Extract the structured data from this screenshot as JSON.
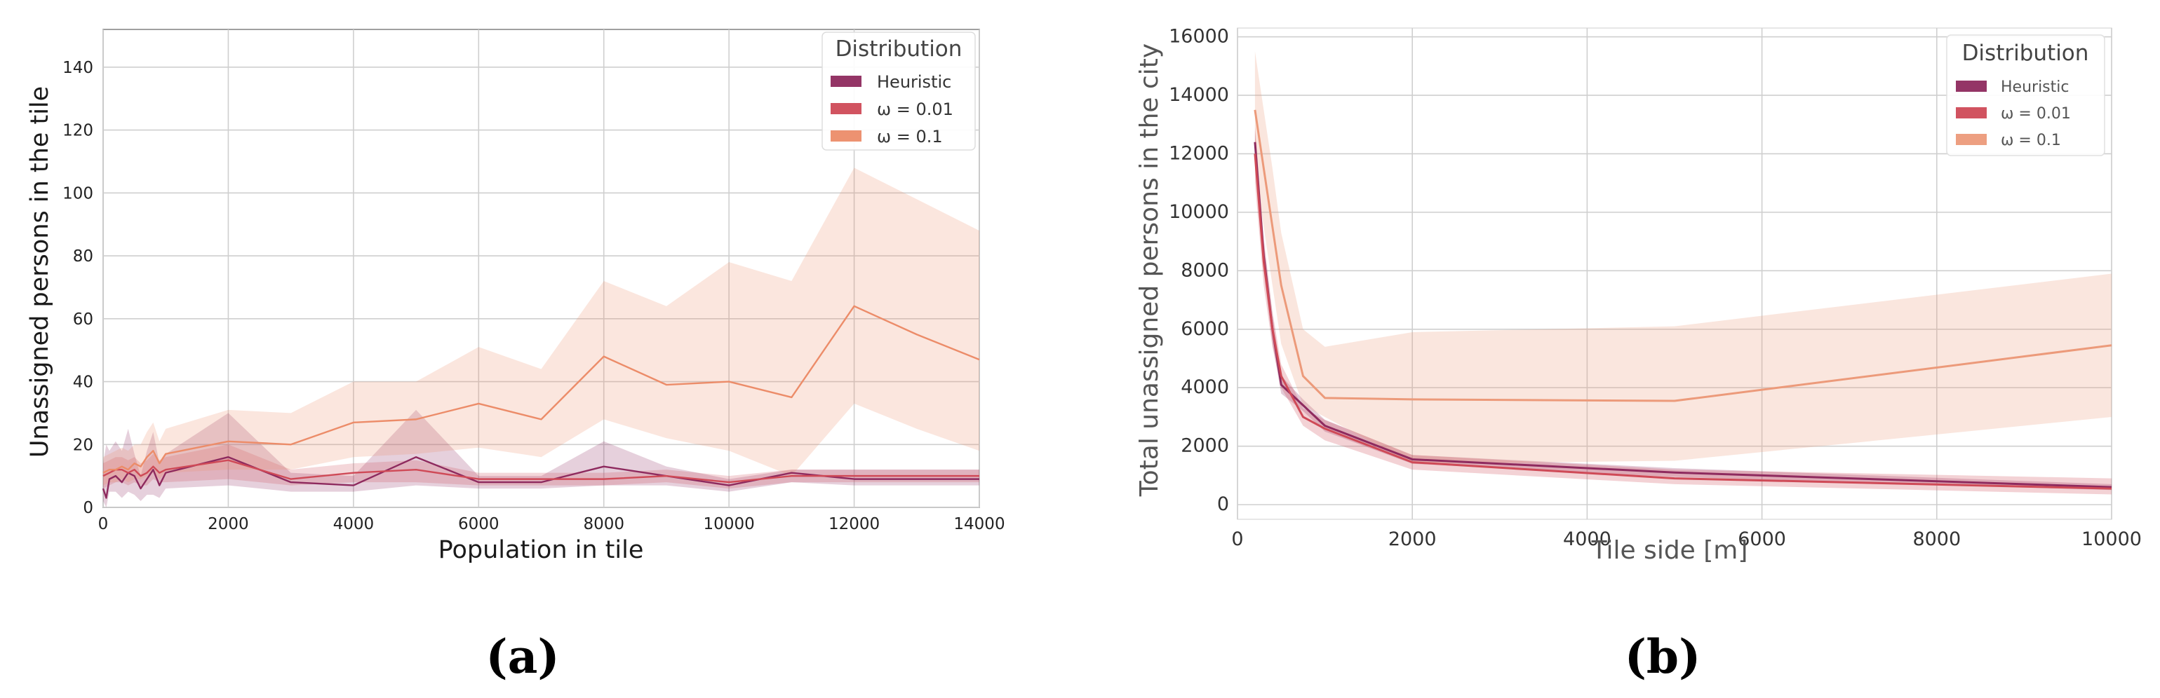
{
  "chart_data": [
    {
      "type": "line",
      "panel_label": "(a)",
      "title": "",
      "xlabel": "Population in tile",
      "ylabel": "Unassigned persons in the tile",
      "xlim": [
        0,
        14000
      ],
      "ylim": [
        0,
        152
      ],
      "xticks": [
        0,
        2000,
        4000,
        6000,
        8000,
        10000,
        12000,
        14000
      ],
      "yticks": [
        0,
        20,
        40,
        60,
        80,
        100,
        120,
        140
      ],
      "grid": true,
      "legend": {
        "title": "Distribution",
        "placement": "top-right"
      },
      "series": [
        {
          "name": "Heuristic",
          "color": "#8e2a5e",
          "x": [
            0,
            50,
            100,
            200,
            300,
            400,
            500,
            600,
            700,
            800,
            900,
            1000,
            2000,
            3000,
            4000,
            5000,
            6000,
            7000,
            8000,
            9000,
            10000,
            11000,
            12000,
            13000,
            14000
          ],
          "y": [
            6,
            3,
            9,
            10,
            8,
            11,
            10,
            6,
            9,
            12,
            7,
            11,
            16,
            8,
            7,
            16,
            8,
            8,
            13,
            10,
            7,
            11,
            9,
            9,
            9
          ],
          "low": [
            2,
            0,
            5,
            5,
            3,
            5,
            4,
            2,
            4,
            4,
            3,
            6,
            7,
            5,
            5,
            7,
            6,
            6,
            7,
            7,
            5,
            8,
            7,
            7,
            7
          ],
          "high": [
            14,
            20,
            18,
            21,
            18,
            25,
            17,
            10,
            18,
            24,
            14,
            17,
            30,
            11,
            10,
            31,
            10,
            10,
            21,
            13,
            9,
            12,
            12,
            12,
            12
          ]
        },
        {
          "name": "ω = 0.01",
          "color": "#cf4a57",
          "x": [
            0,
            100,
            200,
            300,
            400,
            500,
            600,
            700,
            800,
            900,
            1000,
            2000,
            3000,
            4000,
            5000,
            6000,
            7000,
            8000,
            9000,
            10000,
            11000,
            12000,
            13000,
            14000
          ],
          "y": [
            10,
            11,
            12,
            12,
            11,
            12,
            10,
            11,
            13,
            11,
            12,
            15,
            9,
            11,
            12,
            9,
            9,
            9,
            10,
            8,
            10,
            10,
            10,
            10
          ],
          "low": [
            6,
            7,
            8,
            8,
            7,
            8,
            7,
            7,
            9,
            8,
            8,
            9,
            7,
            8,
            8,
            7,
            7,
            7,
            8,
            6,
            8,
            8,
            8,
            8
          ],
          "high": [
            14,
            15,
            16,
            16,
            15,
            16,
            14,
            15,
            17,
            15,
            16,
            20,
            12,
            14,
            15,
            11,
            11,
            11,
            12,
            10,
            12,
            12,
            12,
            12
          ]
        },
        {
          "name": "ω = 0.1",
          "color": "#ec8c69",
          "x": [
            0,
            100,
            200,
            300,
            400,
            500,
            600,
            700,
            800,
            900,
            1000,
            2000,
            3000,
            4000,
            5000,
            6000,
            7000,
            8000,
            9000,
            10000,
            11000,
            12000,
            13000,
            14000
          ],
          "y": [
            11,
            12,
            12,
            13,
            12,
            14,
            13,
            16,
            18,
            14,
            17,
            21,
            20,
            27,
            28,
            33,
            28,
            48,
            39,
            40,
            35,
            64,
            55,
            47
          ],
          "low": [
            7,
            8,
            8,
            9,
            8,
            9,
            9,
            10,
            11,
            9,
            11,
            12,
            12,
            16,
            17,
            19,
            16,
            28,
            22,
            18,
            10,
            33,
            25,
            18
          ],
          "high": [
            16,
            17,
            18,
            19,
            18,
            20,
            20,
            24,
            27,
            21,
            25,
            31,
            30,
            40,
            40,
            51,
            44,
            72,
            64,
            78,
            72,
            108,
            98,
            88
          ]
        }
      ]
    },
    {
      "type": "line",
      "panel_label": "(b)",
      "title": "",
      "xlabel": "Tile side [m]",
      "ylabel": "Total unassigned persons in the city",
      "xlim": [
        0,
        10000
      ],
      "ylim": [
        -500,
        16300
      ],
      "xticks": [
        0,
        2000,
        4000,
        6000,
        8000,
        10000
      ],
      "yticks": [
        0,
        2000,
        4000,
        6000,
        8000,
        10000,
        12000,
        14000,
        16000
      ],
      "grid": true,
      "legend": {
        "title": "Distribution",
        "placement": "top-right"
      },
      "series": [
        {
          "name": "Heuristic",
          "color": "#8e2a5e",
          "x": [
            200,
            300,
            400,
            500,
            750,
            1000,
            2000,
            5000,
            10000
          ],
          "y": [
            12400,
            8500,
            6000,
            4100,
            3400,
            2700,
            1550,
            1100,
            600
          ],
          "low": [
            12000,
            8000,
            5500,
            3800,
            3200,
            2500,
            1400,
            950,
            500
          ],
          "high": [
            12800,
            9000,
            6500,
            4400,
            3600,
            2900,
            1700,
            1250,
            700
          ]
        },
        {
          "name": "ω = 0.01",
          "color": "#cf4a57",
          "x": [
            200,
            300,
            400,
            500,
            750,
            1000,
            2000,
            5000,
            10000
          ],
          "y": [
            12000,
            8300,
            6000,
            4400,
            3000,
            2600,
            1450,
            900,
            550
          ],
          "low": [
            11000,
            7500,
            5400,
            4000,
            2700,
            2200,
            1200,
            700,
            350
          ],
          "high": [
            13000,
            9100,
            6600,
            4800,
            3300,
            2900,
            1700,
            1200,
            900
          ]
        },
        {
          "name": "ω = 0.1",
          "color": "#ec9a7a",
          "x": [
            200,
            300,
            400,
            500,
            750,
            1000,
            2000,
            5000,
            10000
          ],
          "y": [
            13500,
            11500,
            9500,
            7500,
            4400,
            3650,
            3600,
            3550,
            5450
          ],
          "low": [
            11500,
            9500,
            7500,
            5500,
            3400,
            3000,
            1400,
            1500,
            3000
          ],
          "high": [
            15500,
            13500,
            11500,
            9300,
            6000,
            5400,
            5900,
            6100,
            7900
          ]
        }
      ]
    }
  ]
}
